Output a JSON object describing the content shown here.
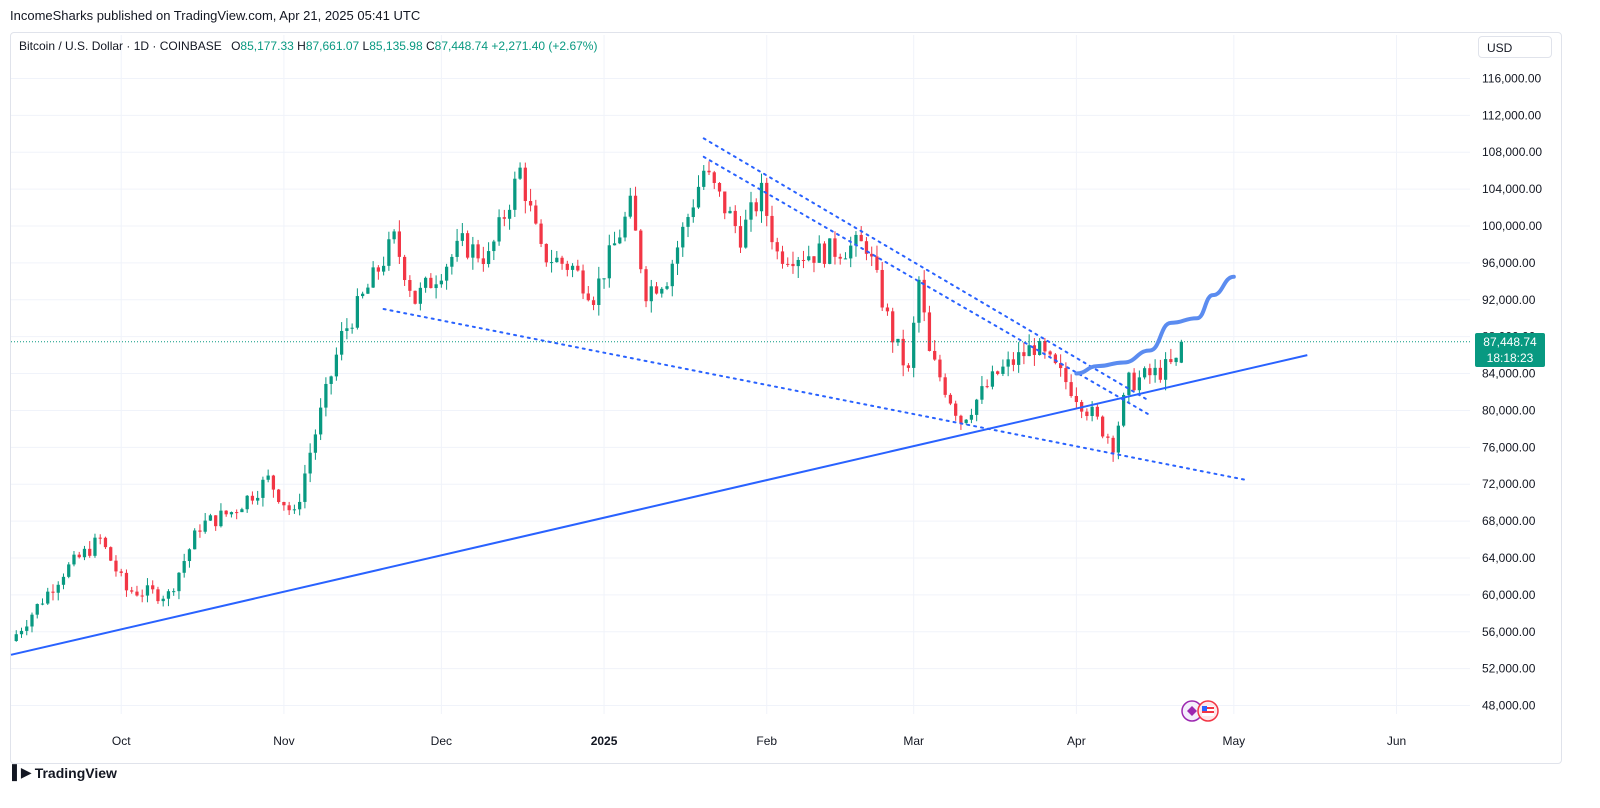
{
  "publisher": "IncomeSharks published on TradingView.com, Apr 21, 2025 05:41 UTC",
  "brand": "TradingView",
  "currency": "USD",
  "legend": {
    "symbol": "Bitcoin / U.S. Dollar · 1D · COINBASE",
    "open_label": "O",
    "open": "85,177.33",
    "high_label": "H",
    "high": "87,661.07",
    "low_label": "L",
    "low": "85,135.98",
    "close_label": "C",
    "close": "87,448.74",
    "change": "+2,271.40 (+2.67%)"
  },
  "last_price": "87,448.74",
  "countdown": "18:18:23",
  "colors": {
    "up": "#089981",
    "down": "#f23645",
    "trend": "#2962ff",
    "projection": "#5b8cf0",
    "grid": "#f0f3fa"
  },
  "chart_data": {
    "type": "candlestick",
    "x_ticks": [
      "Oct",
      "Nov",
      "Dec",
      "2025",
      "Feb",
      "Mar",
      "Apr",
      "May",
      "Jun"
    ],
    "y_ticks": [
      "116,000.00",
      "112,000.00",
      "108,000.00",
      "104,000.00",
      "100,000.00",
      "96,000.00",
      "92,000.00",
      "88,000.00",
      "84,000.00",
      "80,000.00",
      "76,000.00",
      "72,000.00",
      "68,000.00",
      "64,000.00",
      "60,000.00",
      "56,000.00",
      "52,000.00",
      "48,000.00"
    ],
    "ylim": [
      46000,
      118000
    ],
    "x_range": [
      "2024-09-10",
      "2025-06-15"
    ],
    "price_path": [
      [
        "2024-09-10",
        55000
      ],
      [
        "2024-09-20",
        62500
      ],
      [
        "2024-09-27",
        66000
      ],
      [
        "2024-10-02",
        60500
      ],
      [
        "2024-10-10",
        60000
      ],
      [
        "2024-10-16",
        67500
      ],
      [
        "2024-10-22",
        69000
      ],
      [
        "2024-10-29",
        72500
      ],
      [
        "2024-11-03",
        68500
      ],
      [
        "2024-11-06",
        75500
      ],
      [
        "2024-11-12",
        88000
      ],
      [
        "2024-11-22",
        98500
      ],
      [
        "2024-11-26",
        92000
      ],
      [
        "2024-12-05",
        98000
      ],
      [
        "2024-12-10",
        96500
      ],
      [
        "2024-12-16",
        106000
      ],
      [
        "2024-12-20",
        97000
      ],
      [
        "2024-12-26",
        95500
      ],
      [
        "2024-12-30",
        92500
      ],
      [
        "2025-01-06",
        102000
      ],
      [
        "2025-01-09",
        93000
      ],
      [
        "2025-01-13",
        94500
      ],
      [
        "2025-01-20",
        106000
      ],
      [
        "2025-01-27",
        99000
      ],
      [
        "2025-01-31",
        103500
      ],
      [
        "2025-02-03",
        97000
      ],
      [
        "2025-02-10",
        97000
      ],
      [
        "2025-02-20",
        98000
      ],
      [
        "2025-02-25",
        88000
      ],
      [
        "2025-02-28",
        84000
      ],
      [
        "2025-03-02",
        94000
      ],
      [
        "2025-03-04",
        86000
      ],
      [
        "2025-03-10",
        79000
      ],
      [
        "2025-03-17",
        84000
      ],
      [
        "2025-03-24",
        87000
      ],
      [
        "2025-03-31",
        82500
      ],
      [
        "2025-04-06",
        78000
      ],
      [
        "2025-04-08",
        76500
      ],
      [
        "2025-04-11",
        83000
      ],
      [
        "2025-04-16",
        84000
      ],
      [
        "2025-04-20",
        85100
      ],
      [
        "2025-04-21",
        87448.74
      ]
    ],
    "trendlines": [
      {
        "style": "solid",
        "from": [
          "2024-09-10",
          53500
        ],
        "to": [
          "2025-05-15",
          86000
        ]
      },
      {
        "style": "dotted",
        "from": [
          "2024-11-20",
          91000
        ],
        "to": [
          "2025-05-03",
          72500
        ]
      },
      {
        "style": "dotted",
        "from": [
          "2025-01-20",
          109500
        ],
        "to": [
          "2025-04-15",
          81000
        ]
      },
      {
        "style": "dotted",
        "from": [
          "2025-01-20",
          107500
        ],
        "to": [
          "2025-04-15",
          79500
        ]
      }
    ],
    "projection": [
      [
        "2025-04-01",
        84000
      ],
      [
        "2025-04-05",
        84800
      ],
      [
        "2025-04-10",
        85200
      ],
      [
        "2025-04-15",
        86500
      ],
      [
        "2025-04-19",
        89500
      ],
      [
        "2025-04-24",
        90000
      ],
      [
        "2025-04-27",
        92500
      ],
      [
        "2025-05-01",
        94500
      ]
    ]
  }
}
